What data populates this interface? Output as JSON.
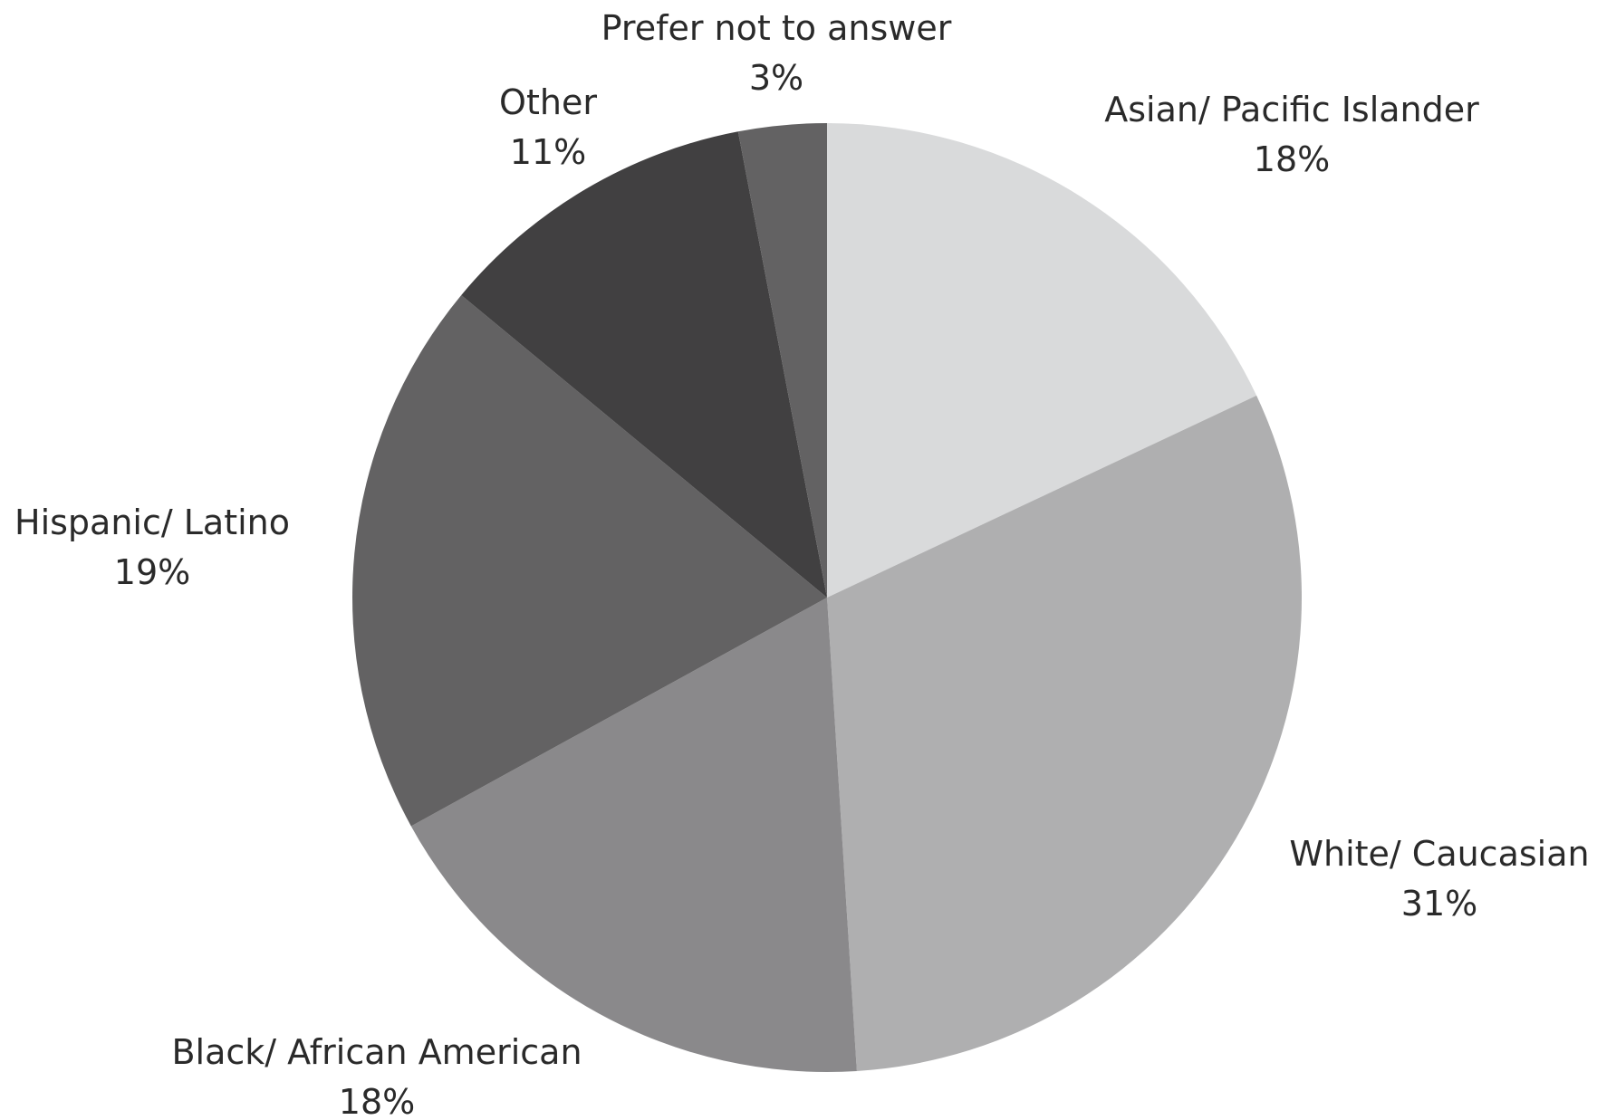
{
  "chart_data": {
    "type": "pie",
    "start_angle_deg": 0,
    "direction": "clockwise",
    "slices": [
      {
        "label": "Asian/ Pacific Islander",
        "value": 18,
        "display": "18%",
        "color": "#d9dadb"
      },
      {
        "label": "White/ Caucasian",
        "value": 31,
        "display": "31%",
        "color": "#afafb0"
      },
      {
        "label": "Black/ African American",
        "value": 18,
        "display": "18%",
        "color": "#8a898b"
      },
      {
        "label": "Hispanic/ Latino",
        "value": 19,
        "display": "19%",
        "color": "#636263"
      },
      {
        "label": "Other",
        "value": 11,
        "display": "11%",
        "color": "#414041"
      },
      {
        "label": "Prefer not to answer",
        "value": 3,
        "display": "3%",
        "color": "#636263"
      }
    ]
  }
}
